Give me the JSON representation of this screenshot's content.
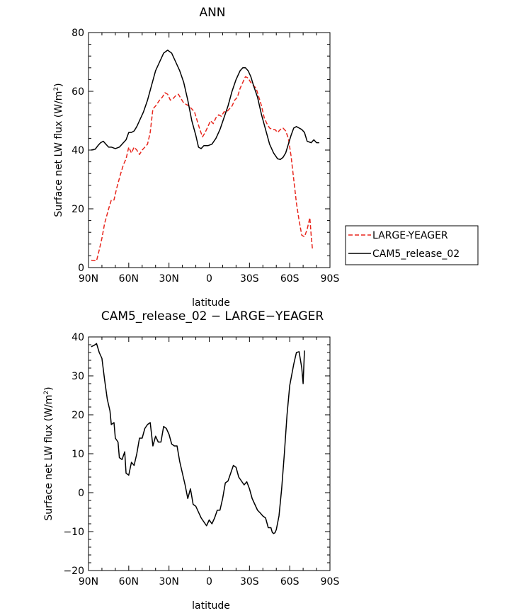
{
  "chart_data": [
    {
      "type": "line",
      "title": "ANN",
      "xlabel": "latitude",
      "ylabel": "Surface net LW flux (W/m²)",
      "x_ticks": [
        -90,
        -60,
        -30,
        0,
        30,
        60,
        90
      ],
      "x_tick_labels": [
        "90N",
        "60N",
        "30N",
        "0",
        "30S",
        "60S",
        "90S"
      ],
      "y_ticks": [
        0,
        20,
        40,
        60,
        80
      ],
      "y_tick_labels": [
        "0",
        "20",
        "40",
        "60",
        "80"
      ],
      "xlim": [
        -90,
        90
      ],
      "ylim": [
        0,
        80
      ],
      "legend_position": "right",
      "series": [
        {
          "name": "LARGE-YEAGER",
          "color": "#e8271e",
          "dash": "dashed",
          "points": [
            [
              -88,
              2.5
            ],
            [
              -84,
              2.3
            ],
            [
              -82,
              6
            ],
            [
              -80,
              10
            ],
            [
              -78,
              15
            ],
            [
              -75,
              20
            ],
            [
              -73,
              23
            ],
            [
              -71,
              23
            ],
            [
              -69,
              27
            ],
            [
              -66,
              32
            ],
            [
              -64,
              35
            ],
            [
              -62,
              37
            ],
            [
              -60,
              41
            ],
            [
              -58,
              39
            ],
            [
              -56,
              41
            ],
            [
              -54,
              40
            ],
            [
              -52,
              38.5
            ],
            [
              -50,
              40
            ],
            [
              -48,
              41
            ],
            [
              -46,
              42
            ],
            [
              -44,
              46
            ],
            [
              -42,
              54
            ],
            [
              -40,
              55
            ],
            [
              -37,
              57
            ],
            [
              -35,
              58
            ],
            [
              -33,
              59.5
            ],
            [
              -31,
              59
            ],
            [
              -29,
              57
            ],
            [
              -27,
              57.5
            ],
            [
              -25,
              58.5
            ],
            [
              -23,
              59
            ],
            [
              -21,
              57.5
            ],
            [
              -19,
              56
            ],
            [
              -17,
              55.5
            ],
            [
              -15,
              55
            ],
            [
              -13,
              54
            ],
            [
              -11,
              53
            ],
            [
              -9,
              50
            ],
            [
              -7,
              47
            ],
            [
              -5,
              44.5
            ],
            [
              -3,
              46
            ],
            [
              -1,
              48
            ],
            [
              1,
              50
            ],
            [
              3,
              49
            ],
            [
              5,
              51
            ],
            [
              7,
              52
            ],
            [
              9,
              51.5
            ],
            [
              11,
              53
            ],
            [
              13,
              53
            ],
            [
              15,
              54
            ],
            [
              17,
              55
            ],
            [
              19,
              57
            ],
            [
              21,
              58
            ],
            [
              23,
              61
            ],
            [
              25,
              63
            ],
            [
              27,
              65
            ],
            [
              29,
              64.5
            ],
            [
              31,
              63
            ],
            [
              33,
              62
            ],
            [
              35,
              61
            ],
            [
              37,
              58
            ],
            [
              39,
              55
            ],
            [
              41,
              51
            ],
            [
              43,
              49
            ],
            [
              45,
              47.5
            ],
            [
              47,
              47
            ],
            [
              49,
              47
            ],
            [
              51,
              46
            ],
            [
              53,
              47
            ],
            [
              55,
              47.5
            ],
            [
              57,
              46.5
            ],
            [
              59,
              44
            ],
            [
              61,
              38
            ],
            [
              63,
              30
            ],
            [
              65,
              22
            ],
            [
              67,
              16
            ],
            [
              69,
              11
            ],
            [
              71,
              10.5
            ],
            [
              73,
              13
            ],
            [
              75,
              17
            ],
            [
              76,
              11
            ],
            [
              77,
              6
            ]
          ]
        },
        {
          "name": "CAM5_release_02",
          "color": "#000000",
          "dash": "solid",
          "points": [
            [
              -88,
              40
            ],
            [
              -85,
              40.3
            ],
            [
              -83,
              41.5
            ],
            [
              -81,
              42.5
            ],
            [
              -79,
              43
            ],
            [
              -77,
              42
            ],
            [
              -75,
              41
            ],
            [
              -73,
              41
            ],
            [
              -70,
              40.5
            ],
            [
              -67,
              41
            ],
            [
              -64,
              42.5
            ],
            [
              -62,
              43.5
            ],
            [
              -60,
              46
            ],
            [
              -58,
              46
            ],
            [
              -56,
              46.5
            ],
            [
              -54,
              48
            ],
            [
              -52,
              50
            ],
            [
              -49,
              53
            ],
            [
              -46,
              57
            ],
            [
              -43,
              62
            ],
            [
              -40,
              67
            ],
            [
              -37,
              70
            ],
            [
              -34,
              73
            ],
            [
              -31,
              74
            ],
            [
              -28,
              73
            ],
            [
              -25,
              70
            ],
            [
              -22,
              67
            ],
            [
              -19,
              63
            ],
            [
              -16,
              57
            ],
            [
              -13,
              50
            ],
            [
              -10,
              45
            ],
            [
              -8,
              41
            ],
            [
              -6,
              40.5
            ],
            [
              -4,
              41.5
            ],
            [
              -1,
              41.5
            ],
            [
              2,
              42
            ],
            [
              5,
              44
            ],
            [
              8,
              47
            ],
            [
              11,
              51
            ],
            [
              14,
              55
            ],
            [
              17,
              60
            ],
            [
              20,
              64
            ],
            [
              23,
              67
            ],
            [
              25,
              68
            ],
            [
              27,
              68
            ],
            [
              29,
              67
            ],
            [
              31,
              65
            ],
            [
              33,
              62
            ],
            [
              36,
              58
            ],
            [
              39,
              52
            ],
            [
              42,
              47
            ],
            [
              45,
              42
            ],
            [
              48,
              39
            ],
            [
              51,
              37
            ],
            [
              53,
              36.8
            ],
            [
              55,
              37.5
            ],
            [
              57,
              39
            ],
            [
              59,
              42
            ],
            [
              61,
              45
            ],
            [
              63,
              47.5
            ],
            [
              65,
              48
            ],
            [
              67,
              47.5
            ],
            [
              69,
              47
            ],
            [
              71,
              46
            ],
            [
              73,
              43
            ],
            [
              76,
              42.5
            ],
            [
              78,
              43.5
            ],
            [
              80,
              42.5
            ],
            [
              82,
              42.5
            ]
          ]
        }
      ]
    },
    {
      "type": "line",
      "title": "CAM5_release_02 − LARGE−YEAGER",
      "xlabel": "latitude",
      "ylabel": "Surface net LW flux (W/m²)",
      "x_ticks": [
        -90,
        -60,
        -30,
        0,
        30,
        60,
        90
      ],
      "x_tick_labels": [
        "90N",
        "60N",
        "30N",
        "0",
        "30S",
        "60S",
        "90S"
      ],
      "y_ticks": [
        -20,
        -10,
        0,
        10,
        20,
        30,
        40
      ],
      "y_tick_labels": [
        "−20",
        "−10",
        "0",
        "10",
        "20",
        "30",
        "40"
      ],
      "xlim": [
        -90,
        90
      ],
      "ylim": [
        -20,
        40
      ],
      "series": [
        {
          "color": "#000000",
          "dash": "solid",
          "points": [
            [
              -88,
              37.5
            ],
            [
              -86,
              37.8
            ],
            [
              -84,
              38.3
            ],
            [
              -82,
              36
            ],
            [
              -80,
              34.5
            ],
            [
              -78,
              29
            ],
            [
              -76,
              24
            ],
            [
              -74,
              21
            ],
            [
              -73,
              17.5
            ],
            [
              -71,
              18
            ],
            [
              -70,
              14
            ],
            [
              -68,
              13
            ],
            [
              -67,
              9
            ],
            [
              -65,
              8.5
            ],
            [
              -63,
              10.5
            ],
            [
              -62,
              5
            ],
            [
              -60,
              4.5
            ],
            [
              -58,
              7.8
            ],
            [
              -56,
              7
            ],
            [
              -54,
              10
            ],
            [
              -52,
              14
            ],
            [
              -50,
              14
            ],
            [
              -48,
              16.5
            ],
            [
              -46,
              17.5
            ],
            [
              -44,
              18
            ],
            [
              -42,
              12
            ],
            [
              -40,
              14.5
            ],
            [
              -38,
              13
            ],
            [
              -36,
              13
            ],
            [
              -34,
              17
            ],
            [
              -32,
              16.5
            ],
            [
              -30,
              15
            ],
            [
              -28,
              12.5
            ],
            [
              -26,
              12
            ],
            [
              -24,
              12
            ],
            [
              -22,
              8
            ],
            [
              -20,
              5
            ],
            [
              -18,
              2
            ],
            [
              -16,
              -1.5
            ],
            [
              -14,
              1
            ],
            [
              -12,
              -3
            ],
            [
              -10,
              -3.5
            ],
            [
              -8,
              -5
            ],
            [
              -6,
              -6.5
            ],
            [
              -4,
              -7.5
            ],
            [
              -2,
              -8.5
            ],
            [
              0,
              -7
            ],
            [
              2,
              -8
            ],
            [
              4,
              -6.5
            ],
            [
              6,
              -4.5
            ],
            [
              8,
              -4.5
            ],
            [
              10,
              -1.5
            ],
            [
              12,
              2.5
            ],
            [
              14,
              3
            ],
            [
              16,
              5
            ],
            [
              18,
              7
            ],
            [
              20,
              6.5
            ],
            [
              22,
              4
            ],
            [
              24,
              3
            ],
            [
              26,
              2
            ],
            [
              28,
              2.8
            ],
            [
              30,
              1
            ],
            [
              32,
              -1.5
            ],
            [
              34,
              -3
            ],
            [
              36,
              -4.5
            ],
            [
              38,
              -5.2
            ],
            [
              40,
              -6
            ],
            [
              42,
              -6.5
            ],
            [
              44,
              -9
            ],
            [
              46,
              -9
            ],
            [
              47,
              -10.2
            ],
            [
              48,
              -10.5
            ],
            [
              49,
              -10.3
            ],
            [
              50,
              -9.5
            ],
            [
              52,
              -6
            ],
            [
              54,
              1
            ],
            [
              56,
              10
            ],
            [
              58,
              20
            ],
            [
              60,
              27.5
            ],
            [
              63,
              33
            ],
            [
              65,
              36
            ],
            [
              67,
              36.2
            ],
            [
              69,
              32
            ],
            [
              70,
              28
            ],
            [
              71,
              36.5
            ]
          ]
        }
      ]
    }
  ]
}
